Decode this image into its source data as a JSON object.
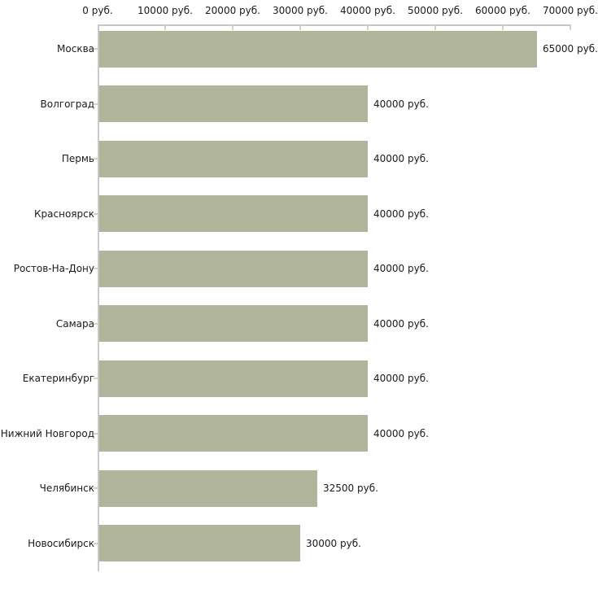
{
  "chart_data": {
    "type": "bar",
    "orientation": "horizontal",
    "title": "",
    "xlabel": "",
    "ylabel": "",
    "grid": false,
    "legend": false,
    "x_axis": {
      "position": "top",
      "min": 0,
      "max": 70000,
      "tick_step": 10000,
      "ticks": [
        0,
        10000,
        20000,
        30000,
        40000,
        50000,
        60000,
        70000
      ],
      "tick_labels": [
        "0 руб.",
        "10000 руб.",
        "20000 руб.",
        "30000 руб.",
        "40000 руб.",
        "50000 руб.",
        "60000 руб.",
        "70000 руб."
      ]
    },
    "categories": [
      "Москва",
      "Волгоград",
      "Пермь",
      "Красноярск",
      "Ростов-На-Дону",
      "Самара",
      "Екатеринбург",
      "Нижний Новгород",
      "Челябинск",
      "Новосибирск"
    ],
    "values": [
      65000,
      40000,
      40000,
      40000,
      40000,
      40000,
      40000,
      40000,
      32500,
      30000
    ],
    "value_labels": [
      "65000 руб.",
      "40000 руб.",
      "40000 руб.",
      "40000 руб.",
      "40000 руб.",
      "40000 руб.",
      "40000 руб.",
      "40000 руб.",
      "32500 руб.",
      "30000 руб."
    ],
    "colors": {
      "bar": "#afb49b",
      "axis": "#c7c7c7",
      "tick": "#d7d4b5",
      "text": "#1a1a1a",
      "background": "#ffffff"
    }
  }
}
